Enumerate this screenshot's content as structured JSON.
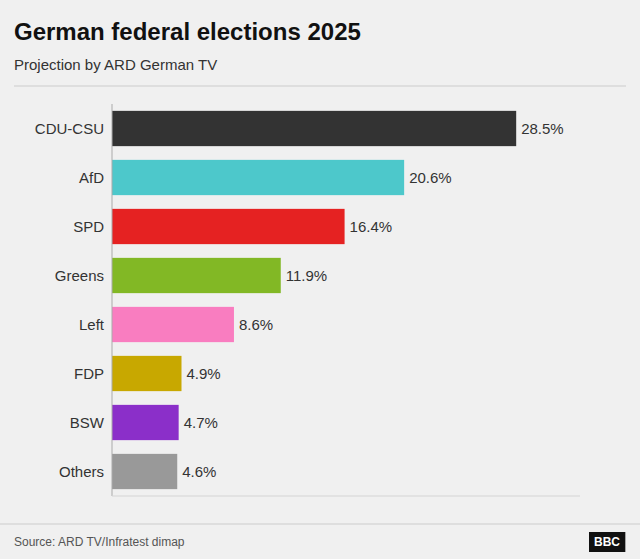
{
  "chart_data": {
    "type": "bar",
    "orientation": "horizontal",
    "title": "German federal elections 2025",
    "subtitle": "Projection by ARD German TV",
    "source": "Source: ARD TV/Infratest dimap",
    "annotations": [
      "BBC"
    ],
    "categories": [
      "CDU-CSU",
      "AfD",
      "SPD",
      "Greens",
      "Left",
      "FDP",
      "BSW",
      "Others"
    ],
    "values": [
      28.5,
      20.6,
      16.4,
      11.9,
      8.6,
      4.9,
      4.7,
      4.6
    ],
    "value_labels": [
      "28.5%",
      "20.6%",
      "16.4%",
      "11.9%",
      "8.6%",
      "4.9%",
      "4.7%",
      "4.6%"
    ],
    "colors": [
      "#333333",
      "#4dc8cb",
      "#e52222",
      "#82b825",
      "#f97dc0",
      "#c8a800",
      "#8b2fc9",
      "#999999"
    ],
    "xlim": [
      0,
      33
    ],
    "data_labels": true,
    "tick_labels": "y",
    "grid": false
  }
}
